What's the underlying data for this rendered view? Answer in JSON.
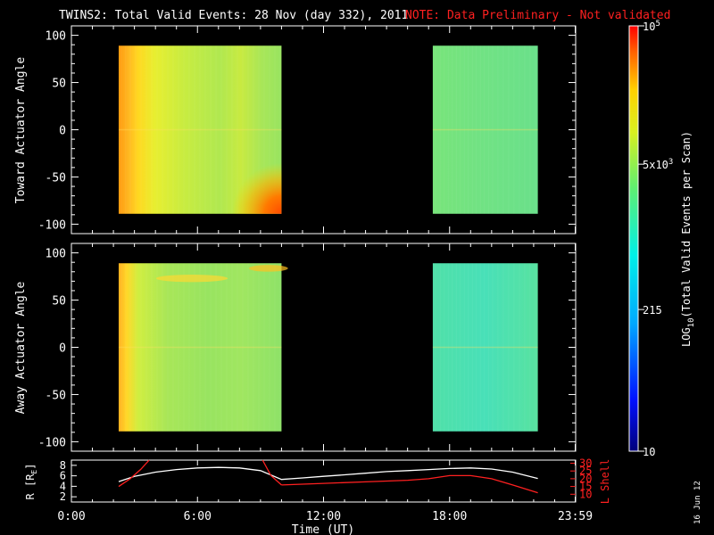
{
  "header": {
    "title": "TWINS2: Total Valid Events: 28 Nov (day 332), 2011",
    "note": "NOTE: Data Preliminary - Not validated",
    "note_color": "#ff2020"
  },
  "date_stamp": "16 Jun 12",
  "chart_data": [
    {
      "type": "heatmap",
      "name": "toward-panel",
      "ylabel": "Toward Actuator Angle",
      "ylim": [
        -110,
        110
      ],
      "yticks": [
        -100,
        -50,
        0,
        50,
        100
      ],
      "ytick_labels": [
        "-100",
        "-50",
        "0",
        "50",
        "100"
      ],
      "xlim_hours": [
        0,
        24
      ],
      "data_blocks": [
        {
          "x_hours": [
            2.25,
            10.0
          ],
          "y": [
            -89,
            89
          ]
        },
        {
          "x_hours": [
            17.2,
            22.2
          ],
          "y": [
            -89,
            89
          ]
        }
      ]
    },
    {
      "type": "heatmap",
      "name": "away-panel",
      "ylabel": "Away Actuator Angle",
      "ylim": [
        -110,
        110
      ],
      "yticks": [
        -100,
        -50,
        0,
        50,
        100
      ],
      "ytick_labels": [
        "-100",
        "-50",
        "0",
        "50",
        "100"
      ],
      "xlim_hours": [
        0,
        24
      ],
      "data_blocks": [
        {
          "x_hours": [
            2.25,
            10.0
          ],
          "y": [
            -89,
            89
          ]
        },
        {
          "x_hours": [
            17.2,
            22.2
          ],
          "y": [
            -89,
            89
          ]
        }
      ]
    },
    {
      "type": "line",
      "name": "orbit-panel",
      "xlabel": "Time (UT)",
      "xticks_hours": [
        0,
        6,
        12,
        18,
        23.98
      ],
      "xtick_labels": [
        "0:00",
        "6:00",
        "12:00",
        "18:00",
        "23:59"
      ],
      "left_axis": {
        "label": "R [RE]",
        "ylim": [
          1,
          9
        ],
        "yticks": [
          2,
          4,
          6,
          8
        ],
        "ytick_labels": [
          "2",
          "4",
          "6",
          "8"
        ]
      },
      "right_axis": {
        "label": "L Shell",
        "ylim": [
          5,
          32
        ],
        "yticks": [
          10,
          15,
          20,
          25,
          30
        ],
        "ytick_labels": [
          "10",
          "15",
          "20",
          "25",
          "30"
        ]
      },
      "series": [
        {
          "axis": "left",
          "color": "#ffffff",
          "x": [
            2.25,
            3,
            4,
            5,
            6,
            7,
            8,
            9,
            10,
            11,
            12,
            13,
            14,
            15,
            16,
            17,
            18,
            19,
            20,
            21,
            22.2
          ],
          "y": [
            4.9,
            5.9,
            6.7,
            7.2,
            7.5,
            7.6,
            7.5,
            7.0,
            5.3,
            5.6,
            5.9,
            6.2,
            6.5,
            6.8,
            7.0,
            7.2,
            7.4,
            7.5,
            7.3,
            6.7,
            5.5
          ]
        },
        {
          "axis": "right",
          "color": "#ff2020",
          "segments": [
            {
              "x": [
                2.25,
                2.8,
                3.3,
                3.7
              ],
              "y": [
                15,
                20,
                26,
                32
              ]
            },
            {
              "x": [
                9.1,
                9.5,
                10.0
              ],
              "y": [
                32,
                22,
                16
              ]
            },
            {
              "x": [
                10.0,
                12,
                14,
                16,
                17,
                18,
                19,
                20,
                21,
                22.2
              ],
              "y": [
                16,
                17,
                18,
                19,
                20,
                22,
                22,
                20,
                16,
                11
              ]
            }
          ]
        }
      ]
    }
  ],
  "colorbar": {
    "label": "LOG10(Total Valid Events per Scan)",
    "label_prefix": "LOG",
    "label_sub": "10",
    "label_rest": "(Total Valid Events per Scan)",
    "ticks": [
      {
        "value": 10,
        "base": "10",
        "exp": ""
      },
      {
        "value": 215,
        "base": "215",
        "exp": ""
      },
      {
        "value": 5000,
        "base": "5x10",
        "exp": "3"
      },
      {
        "value": 100000,
        "base": "10",
        "exp": "5"
      }
    ],
    "range": [
      10,
      100000
    ]
  }
}
